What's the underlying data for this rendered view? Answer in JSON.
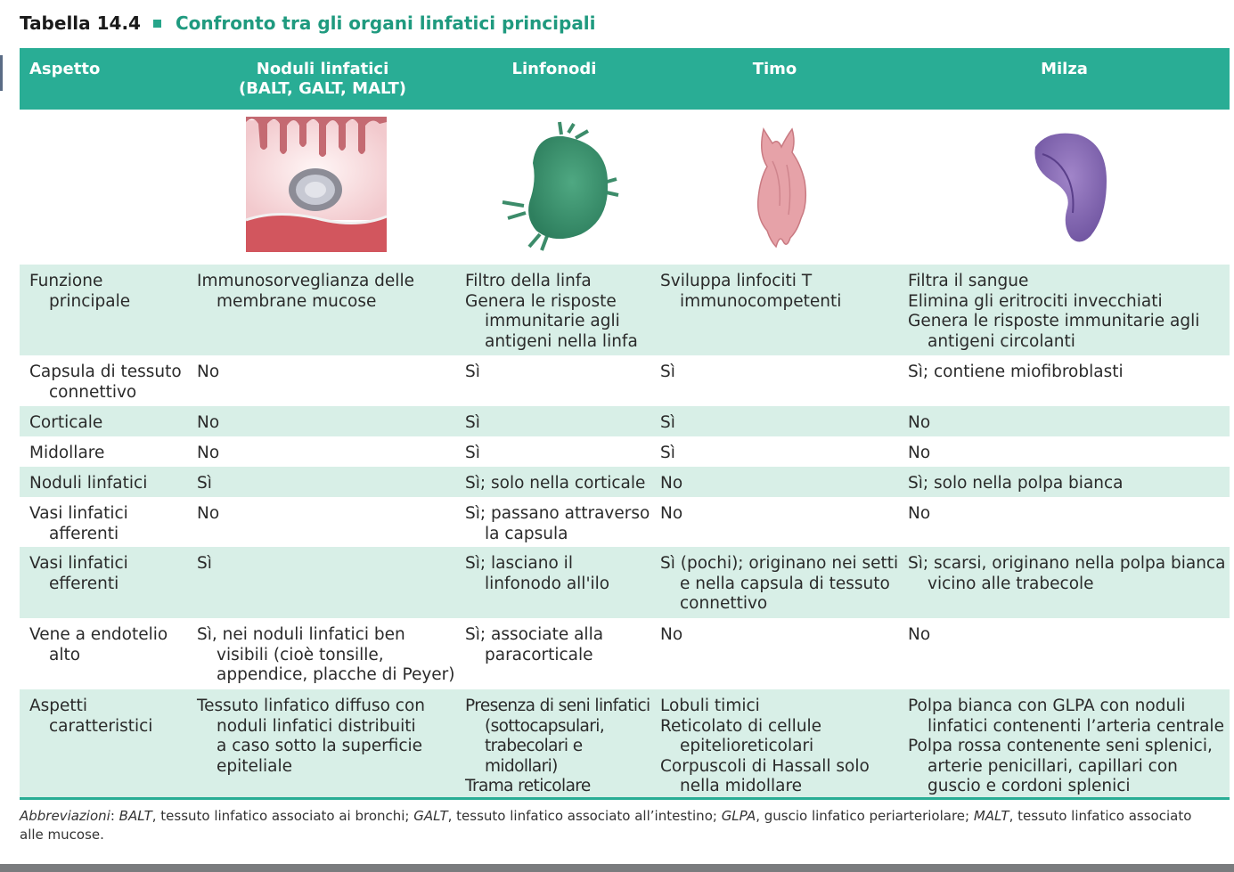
{
  "table": {
    "number": "Tabella 14.4",
    "title": "Confronto tra gli organi linfatici principali",
    "columns": [
      {
        "label_lines": [
          "Aspetto"
        ]
      },
      {
        "label_lines": [
          "Noduli linfatici",
          "(BALT, GALT, MALT)"
        ]
      },
      {
        "label_lines": [
          "Linfonodi"
        ]
      },
      {
        "label_lines": [
          "Timo"
        ]
      },
      {
        "label_lines": [
          "Milza"
        ]
      }
    ],
    "illustrations": [
      "mucosal-nodule-illustration",
      "lymph-node-illustration",
      "thymus-illustration",
      "spleen-illustration"
    ],
    "rows": [
      {
        "cells": [
          [
            "Funzione",
            "principale"
          ],
          [
            "Immunosorveglianza delle",
            "membrane mucose"
          ],
          [
            "Filtro della linfa",
            "Genera le risposte",
            "immunitarie agli",
            "antigeni nella linfa"
          ],
          [
            "Sviluppa linfociti T",
            "immunocompetenti"
          ],
          [
            "Filtra il sangue",
            "Elimina gli eritrociti invecchiati",
            "Genera le risposte immunitarie agli",
            "antigeni circolanti"
          ]
        ]
      },
      {
        "cells": [
          [
            "Capsula di tessuto",
            "connettivo"
          ],
          [
            "No"
          ],
          [
            "Sì"
          ],
          [
            "Sì"
          ],
          [
            "Sì; contiene miofibroblasti"
          ]
        ]
      },
      {
        "cells": [
          [
            "Corticale"
          ],
          [
            "No"
          ],
          [
            "Sì"
          ],
          [
            "Sì"
          ],
          [
            "No"
          ]
        ]
      },
      {
        "cells": [
          [
            "Midollare"
          ],
          [
            "No"
          ],
          [
            "Sì"
          ],
          [
            "Sì"
          ],
          [
            "No"
          ]
        ]
      },
      {
        "cells": [
          [
            "Noduli linfatici"
          ],
          [
            "Sì"
          ],
          [
            "Sì; solo nella corticale"
          ],
          [
            "No"
          ],
          [
            "Sì; solo nella polpa bianca"
          ]
        ]
      },
      {
        "cells": [
          [
            "Vasi linfatici",
            "afferenti"
          ],
          [
            "No"
          ],
          [
            "Sì; passano attraverso",
            "la capsula"
          ],
          [
            "No"
          ],
          [
            "No"
          ]
        ]
      },
      {
        "cells": [
          [
            "Vasi linfatici",
            "efferenti"
          ],
          [
            "Sì"
          ],
          [
            "Sì; lasciano il",
            "linfonodo all'ilo"
          ],
          [
            "Sì (pochi); originano nei setti",
            "e nella capsula di tessuto",
            "connettivo"
          ],
          [
            "Sì; scarsi, originano nella polpa bianca",
            "vicino alle trabecole"
          ]
        ]
      },
      {
        "cells": [
          [
            "Vene a endotelio",
            "alto"
          ],
          [
            "Sì, nei noduli linfatici ben",
            "visibili (cioè tonsille,",
            "appendice, placche di Peyer)"
          ],
          [
            "Sì; associate alla",
            "paracorticale"
          ],
          [
            "No"
          ],
          [
            "No"
          ]
        ]
      },
      {
        "cells": [
          [
            "Aspetti",
            "caratteristici"
          ],
          [
            "Tessuto linfatico diffuso con",
            "noduli linfatici distribuiti",
            "a caso sotto la superficie",
            "epiteliale"
          ],
          [
            "Presenza di seni linfatici",
            "(sottocapsulari,",
            "trabecolari e",
            "midollari)",
            "Trama reticolare"
          ],
          [
            "Lobuli timici",
            "Reticolato di cellule",
            "epitelioreticolari",
            "Corpuscoli di Hassall solo",
            "nella midollare"
          ],
          [
            "Polpa bianca con GLPA con noduli",
            "linfatici contenenti l’arteria centrale",
            "Polpa rossa contenente seni splenici,",
            "arterie penicillari, capillari con",
            "guscio e cordoni splenici"
          ]
        ]
      }
    ]
  },
  "footnote": {
    "heading": "Abbreviazioni",
    "entries": [
      {
        "abbr": "BALT",
        "text": ", tessuto linfatico associato ai bronchi; "
      },
      {
        "abbr": "GALT",
        "text": ", tessuto linfatico associato all’intestino; "
      },
      {
        "abbr": "GLPA",
        "text": ", guscio linfatico periarteriolare; "
      },
      {
        "abbr": "MALT",
        "text": ", tessuto linfatico associato alle mucose."
      }
    ]
  },
  "colors": {
    "header": "#29ad95",
    "title": "#1f9a7f",
    "row_shade": "#d8efe7"
  }
}
